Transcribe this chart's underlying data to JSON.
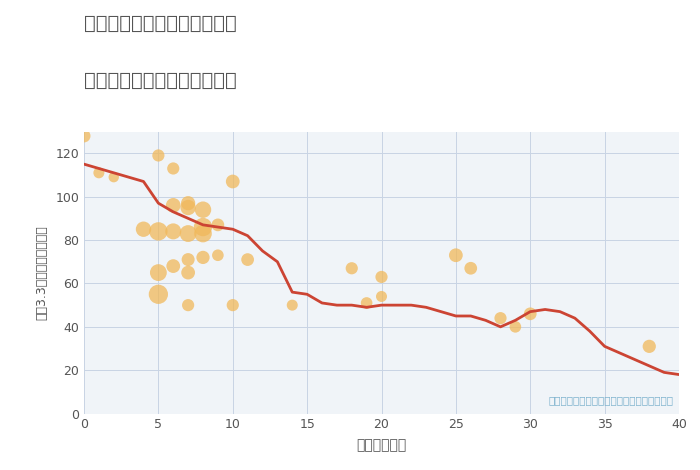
{
  "title_line1": "愛知県稲沢市平和町上三宅の",
  "title_line2": "築年数別中古マンション価格",
  "xlabel": "築年数（年）",
  "ylabel": "坪（3.3㎡）単価（万円）",
  "annotation": "円の大きさは、取引のあった物件面積を示す",
  "background_color": "#ffffff",
  "plot_bg_color": "#f0f4f8",
  "grid_color": "#c8d4e4",
  "line_color": "#cc4433",
  "scatter_color": "#f0b85a",
  "scatter_alpha": 0.75,
  "xlim": [
    0,
    40
  ],
  "ylim": [
    0,
    130
  ],
  "xticks": [
    0,
    5,
    10,
    15,
    20,
    25,
    30,
    35,
    40
  ],
  "yticks": [
    0,
    20,
    40,
    60,
    80,
    100,
    120
  ],
  "line_x": [
    0,
    1,
    2,
    3,
    4,
    5,
    6,
    7,
    8,
    9,
    10,
    11,
    12,
    13,
    14,
    15,
    16,
    17,
    18,
    19,
    20,
    21,
    22,
    23,
    24,
    25,
    26,
    27,
    28,
    29,
    30,
    31,
    32,
    33,
    34,
    35,
    36,
    37,
    38,
    39,
    40
  ],
  "line_y": [
    115,
    113,
    111,
    109,
    107,
    97,
    93,
    90,
    87,
    86,
    85,
    82,
    75,
    70,
    56,
    55,
    51,
    50,
    50,
    49,
    50,
    50,
    50,
    49,
    47,
    45,
    45,
    43,
    40,
    43,
    47,
    48,
    47,
    44,
    38,
    31,
    28,
    25,
    22,
    19,
    18
  ],
  "scatter_x": [
    0,
    1,
    2,
    4,
    5,
    5,
    5,
    5,
    6,
    6,
    6,
    6,
    7,
    7,
    7,
    7,
    7,
    7,
    8,
    8,
    8,
    8,
    9,
    9,
    10,
    10,
    11,
    14,
    18,
    19,
    20,
    20,
    25,
    26,
    28,
    29,
    30,
    38
  ],
  "scatter_y": [
    128,
    111,
    109,
    85,
    119,
    84,
    65,
    55,
    113,
    96,
    84,
    68,
    97,
    95,
    83,
    71,
    65,
    50,
    94,
    86,
    83,
    72,
    87,
    73,
    107,
    50,
    71,
    50,
    67,
    51,
    63,
    54,
    73,
    67,
    44,
    40,
    46,
    31
  ],
  "scatter_size": [
    25,
    18,
    16,
    35,
    22,
    50,
    42,
    55,
    22,
    32,
    38,
    28,
    30,
    35,
    42,
    25,
    28,
    22,
    40,
    50,
    46,
    26,
    24,
    20,
    28,
    22,
    24,
    18,
    22,
    20,
    22,
    18,
    28,
    24,
    22,
    20,
    24,
    26
  ]
}
